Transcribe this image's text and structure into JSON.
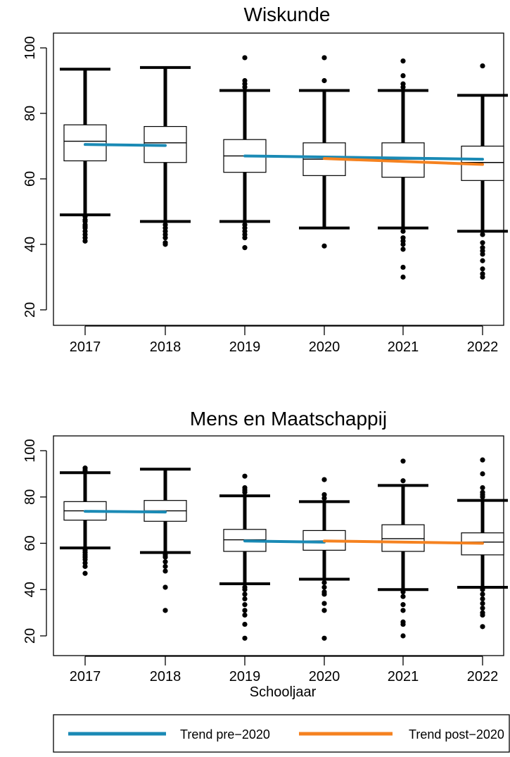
{
  "chart_data": [
    {
      "type": "boxplot",
      "title": "Wiskunde",
      "xlabel": "",
      "ylabel": "",
      "categories": [
        "2017",
        "2018",
        "2019",
        "2020",
        "2021",
        "2022"
      ],
      "yticks": [
        "20",
        "40",
        "60",
        "80",
        "100"
      ],
      "ylim": [
        18,
        105
      ],
      "boxes": [
        {
          "whisker_low": 49,
          "q1": 65.5,
          "median": 71.5,
          "q3": 76.5,
          "whisker_high": 93.5,
          "outliers": [
            48.5,
            47.5,
            47,
            46,
            45.5,
            45,
            44,
            43,
            42,
            41
          ]
        },
        {
          "whisker_low": 47,
          "q1": 65,
          "median": 71,
          "q3": 76,
          "whisker_high": 94,
          "outliers": [
            46,
            45,
            44,
            43,
            42,
            40.5,
            40
          ]
        },
        {
          "whisker_low": 47,
          "q1": 62,
          "median": 67,
          "q3": 72,
          "whisker_high": 87,
          "outliers": [
            97,
            90,
            89,
            88,
            46,
            45,
            44,
            43,
            42,
            39
          ]
        },
        {
          "whisker_low": 45,
          "q1": 61,
          "median": 66,
          "q3": 71,
          "whisker_high": 87,
          "outliers": [
            97,
            90,
            39.5
          ]
        },
        {
          "whisker_low": 45,
          "q1": 60.5,
          "median": 66,
          "q3": 71,
          "whisker_high": 87,
          "outliers": [
            96,
            91.5,
            89,
            88,
            44,
            42,
            41,
            40,
            38.5,
            33,
            30
          ]
        },
        {
          "whisker_low": 44,
          "q1": 59.5,
          "median": 65,
          "q3": 70,
          "whisker_high": 85.5,
          "outliers": [
            94.5,
            43,
            40.5,
            39,
            38,
            37,
            35,
            32.5,
            31,
            30
          ]
        }
      ],
      "series": [
        {
          "name": "Trend pre−2020",
          "color": "#1a8ab5",
          "x": [
            "2017",
            "2018"
          ],
          "y": [
            70.5,
            70.2
          ]
        },
        {
          "color": "#1a8ab5",
          "x": [
            "2019",
            "2022"
          ],
          "y": [
            67,
            66
          ]
        },
        {
          "color": "#f58220",
          "x": [
            "2020",
            "2022"
          ],
          "y": [
            66.2,
            64.4
          ]
        }
      ]
    },
    {
      "type": "boxplot",
      "title": "Mens en Maatschappij",
      "xlabel": "Schooljaar",
      "ylabel": "",
      "categories": [
        "2017",
        "2018",
        "2019",
        "2020",
        "2021",
        "2022"
      ],
      "yticks": [
        "20",
        "40",
        "60",
        "80",
        "100"
      ],
      "ylim": [
        15,
        105
      ],
      "boxes": [
        {
          "whisker_low": 58,
          "q1": 70,
          "median": 74,
          "q3": 78,
          "whisker_high": 90.5,
          "outliers": [
            92.5,
            91.5,
            57,
            56,
            55,
            54,
            53,
            51.5,
            50,
            47
          ]
        },
        {
          "whisker_low": 56,
          "q1": 69.5,
          "median": 74,
          "q3": 78.5,
          "whisker_high": 92,
          "outliers": [
            55,
            54,
            52,
            50,
            48,
            41,
            31
          ]
        },
        {
          "whisker_low": 42.5,
          "q1": 56.5,
          "median": 61.5,
          "q3": 66,
          "whisker_high": 80.5,
          "outliers": [
            89,
            84,
            83,
            82,
            41,
            40,
            38,
            36,
            33.5,
            31,
            29,
            25,
            19
          ]
        },
        {
          "whisker_low": 44.5,
          "q1": 57,
          "median": 61,
          "q3": 65.5,
          "whisker_high": 78,
          "outliers": [
            87.5,
            81,
            79.5,
            43,
            41,
            39,
            38,
            34,
            31,
            19
          ]
        },
        {
          "whisker_low": 40,
          "q1": 56.5,
          "median": 62,
          "q3": 68,
          "whisker_high": 85,
          "outliers": [
            95.5,
            87,
            39,
            37,
            33.5,
            31,
            26,
            25,
            20
          ]
        },
        {
          "whisker_low": 41,
          "q1": 55,
          "median": 60.5,
          "q3": 64.5,
          "whisker_high": 78.5,
          "outliers": [
            96,
            90,
            84,
            82,
            81,
            80,
            40,
            38,
            36,
            34,
            32,
            30,
            29,
            24
          ]
        }
      ],
      "series": [
        {
          "name": "Trend pre−2020",
          "color": "#1a8ab5",
          "x": [
            "2017",
            "2018"
          ],
          "y": [
            73.8,
            73.5
          ]
        },
        {
          "color": "#1a8ab5",
          "x": [
            "2019",
            "2020"
          ],
          "y": [
            61,
            60.5
          ]
        },
        {
          "name": "Trend post−2020",
          "color": "#f58220",
          "x": [
            "2020",
            "2022"
          ],
          "y": [
            61,
            60
          ]
        }
      ]
    }
  ],
  "legend": {
    "items": [
      {
        "label": "Trend pre−2020",
        "color": "#1a8ab5"
      },
      {
        "label": "Trend post−2020",
        "color": "#f58220"
      }
    ]
  }
}
